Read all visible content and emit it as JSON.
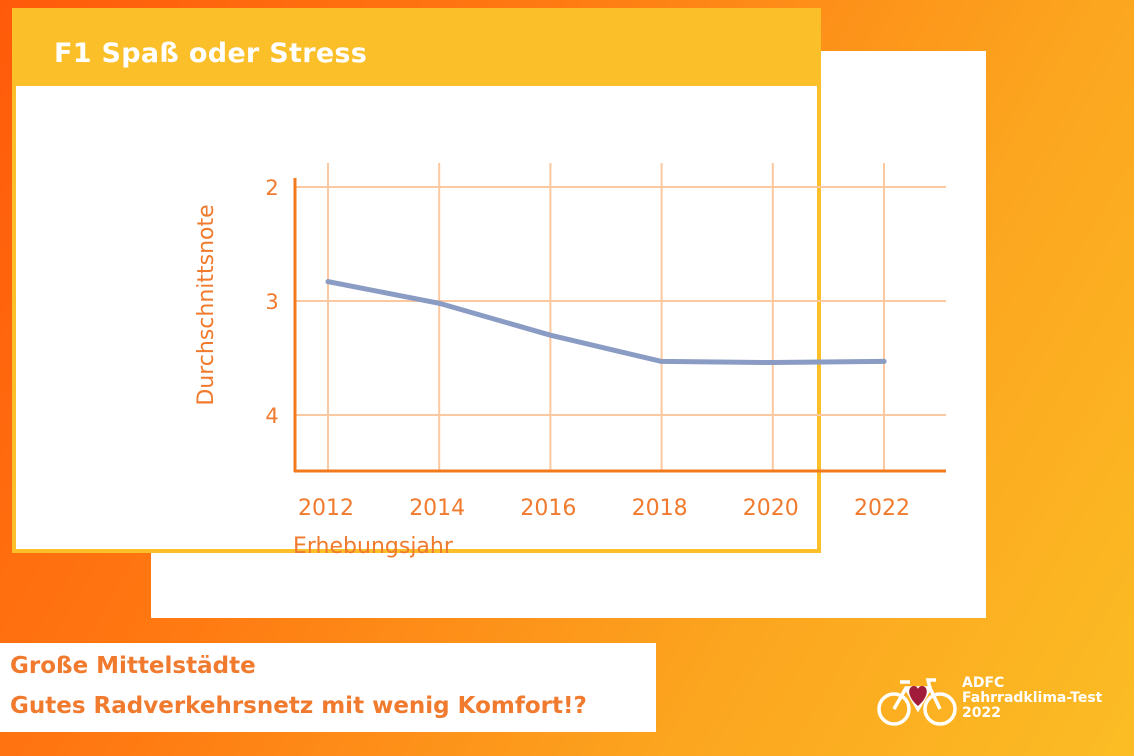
{
  "card": {
    "title": "F1 Spaß oder Stress"
  },
  "chart_data": {
    "type": "line",
    "title": "F1 Spaß oder Stress",
    "xlabel": "Erhebungsjahr",
    "ylabel": "Durchschnittsnote",
    "x": [
      2012,
      2014,
      2016,
      2018,
      2020,
      2022
    ],
    "xticks": [
      "2012",
      "2014",
      "2016",
      "2018",
      "2020",
      "2022"
    ],
    "yticks": [
      "2",
      "3",
      "4"
    ],
    "ylim": [
      2,
      4.5
    ],
    "y_inverted": true,
    "grid": true,
    "series": [
      {
        "values": [
          2.83,
          3.02,
          3.3,
          3.53,
          3.54,
          3.53
        ]
      }
    ],
    "colors": {
      "line": "#8a9cc4",
      "grid": "#fbc8a0",
      "axis": "#f07a1e",
      "label": "#f07a2e"
    }
  },
  "caption": {
    "line1": "Große Mittelstädte",
    "line2": "Gutes Radverkehrsnetz mit wenig Komfort!?"
  },
  "logo": {
    "icon": "bicycle-heart-icon",
    "line1": "ADFC",
    "line2": "Fahrradklima-Test",
    "line3": "2022"
  }
}
